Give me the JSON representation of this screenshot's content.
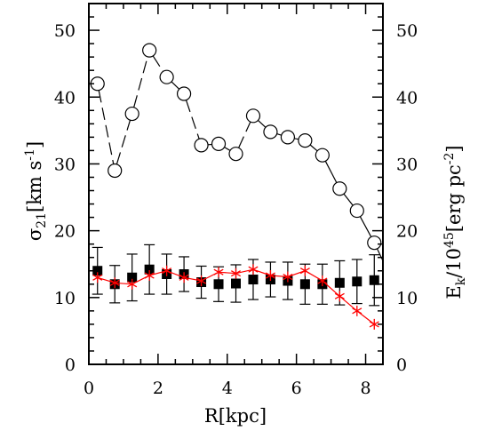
{
  "chart_data": {
    "type": "scatter",
    "xlabel": "R[kpc]",
    "ylabel_left": {
      "main": "σ",
      "sub": "21",
      "rest": "[km s",
      "sup": "-1",
      "close": "]"
    },
    "ylabel_right": {
      "main": "E",
      "sub": "k",
      "mid": "/10",
      "sup": "45",
      "rest": "[erg pc",
      "sup2": "-2",
      "close": "]"
    },
    "xlim": [
      0,
      8.5
    ],
    "ylim": [
      0,
      54
    ],
    "x_ticks": [
      0,
      2,
      4,
      6,
      8
    ],
    "y_ticks": [
      0,
      10,
      20,
      30,
      40,
      50
    ],
    "series": [
      {
        "marker": "open-circle",
        "line": "dashed-solid",
        "color": "#000000",
        "points": [
          {
            "x": 0.25,
            "y": 42.0
          },
          {
            "x": 0.75,
            "y": 29.0
          },
          {
            "x": 1.25,
            "y": 37.5
          },
          {
            "x": 1.75,
            "y": 47.0
          },
          {
            "x": 2.25,
            "y": 43.0
          },
          {
            "x": 2.75,
            "y": 40.5
          },
          {
            "x": 3.25,
            "y": 32.8
          },
          {
            "x": 3.75,
            "y": 33.0
          },
          {
            "x": 4.25,
            "y": 31.5
          },
          {
            "x": 4.75,
            "y": 37.2
          },
          {
            "x": 5.25,
            "y": 34.8
          },
          {
            "x": 5.75,
            "y": 34.0
          },
          {
            "x": 6.25,
            "y": 33.5
          },
          {
            "x": 6.75,
            "y": 31.3
          },
          {
            "x": 7.25,
            "y": 26.3
          },
          {
            "x": 7.75,
            "y": 23.0
          },
          {
            "x": 8.25,
            "y": 18.2
          }
        ],
        "tail_to": {
          "x": 8.5,
          "y": 15.5
        }
      },
      {
        "marker": "filled-square",
        "line": "none",
        "color": "#000000",
        "points": [
          {
            "x": 0.25,
            "y": 14.0,
            "err": 3.5
          },
          {
            "x": 0.75,
            "y": 12.0,
            "err": 2.8
          },
          {
            "x": 1.25,
            "y": 13.0,
            "err": 3.5
          },
          {
            "x": 1.75,
            "y": 14.2,
            "err": 3.7
          },
          {
            "x": 2.25,
            "y": 13.5,
            "err": 3.0
          },
          {
            "x": 2.75,
            "y": 13.5,
            "err": 2.6
          },
          {
            "x": 3.25,
            "y": 12.3,
            "err": 2.4
          },
          {
            "x": 3.75,
            "y": 12.0,
            "err": 2.6
          },
          {
            "x": 4.25,
            "y": 12.1,
            "err": 2.8
          },
          {
            "x": 4.75,
            "y": 12.7,
            "err": 3.0
          },
          {
            "x": 5.25,
            "y": 12.7,
            "err": 2.6
          },
          {
            "x": 5.75,
            "y": 12.5,
            "err": 2.8
          },
          {
            "x": 6.25,
            "y": 12.0,
            "err": 3.0
          },
          {
            "x": 6.75,
            "y": 12.0,
            "err": 3.0
          },
          {
            "x": 7.25,
            "y": 12.2,
            "err": 3.3
          },
          {
            "x": 7.75,
            "y": 12.4,
            "err": 3.3
          },
          {
            "x": 8.25,
            "y": 12.6,
            "err": 3.8
          }
        ]
      },
      {
        "marker": "red-asterisk",
        "line": "solid",
        "color": "#ff0000",
        "points": [
          {
            "x": 0.25,
            "y": 13.0
          },
          {
            "x": 0.75,
            "y": 12.2
          },
          {
            "x": 1.25,
            "y": 12.0
          },
          {
            "x": 1.75,
            "y": 13.3
          },
          {
            "x": 2.25,
            "y": 14.0
          },
          {
            "x": 2.75,
            "y": 13.0
          },
          {
            "x": 3.25,
            "y": 12.5
          },
          {
            "x": 3.75,
            "y": 13.8
          },
          {
            "x": 4.25,
            "y": 13.6
          },
          {
            "x": 4.75,
            "y": 14.2
          },
          {
            "x": 5.25,
            "y": 13.3
          },
          {
            "x": 5.75,
            "y": 13.1
          },
          {
            "x": 6.25,
            "y": 14.0
          },
          {
            "x": 6.75,
            "y": 12.5
          },
          {
            "x": 7.25,
            "y": 10.2
          },
          {
            "x": 7.75,
            "y": 8.0
          },
          {
            "x": 8.25,
            "y": 6.0
          }
        ]
      }
    ]
  }
}
